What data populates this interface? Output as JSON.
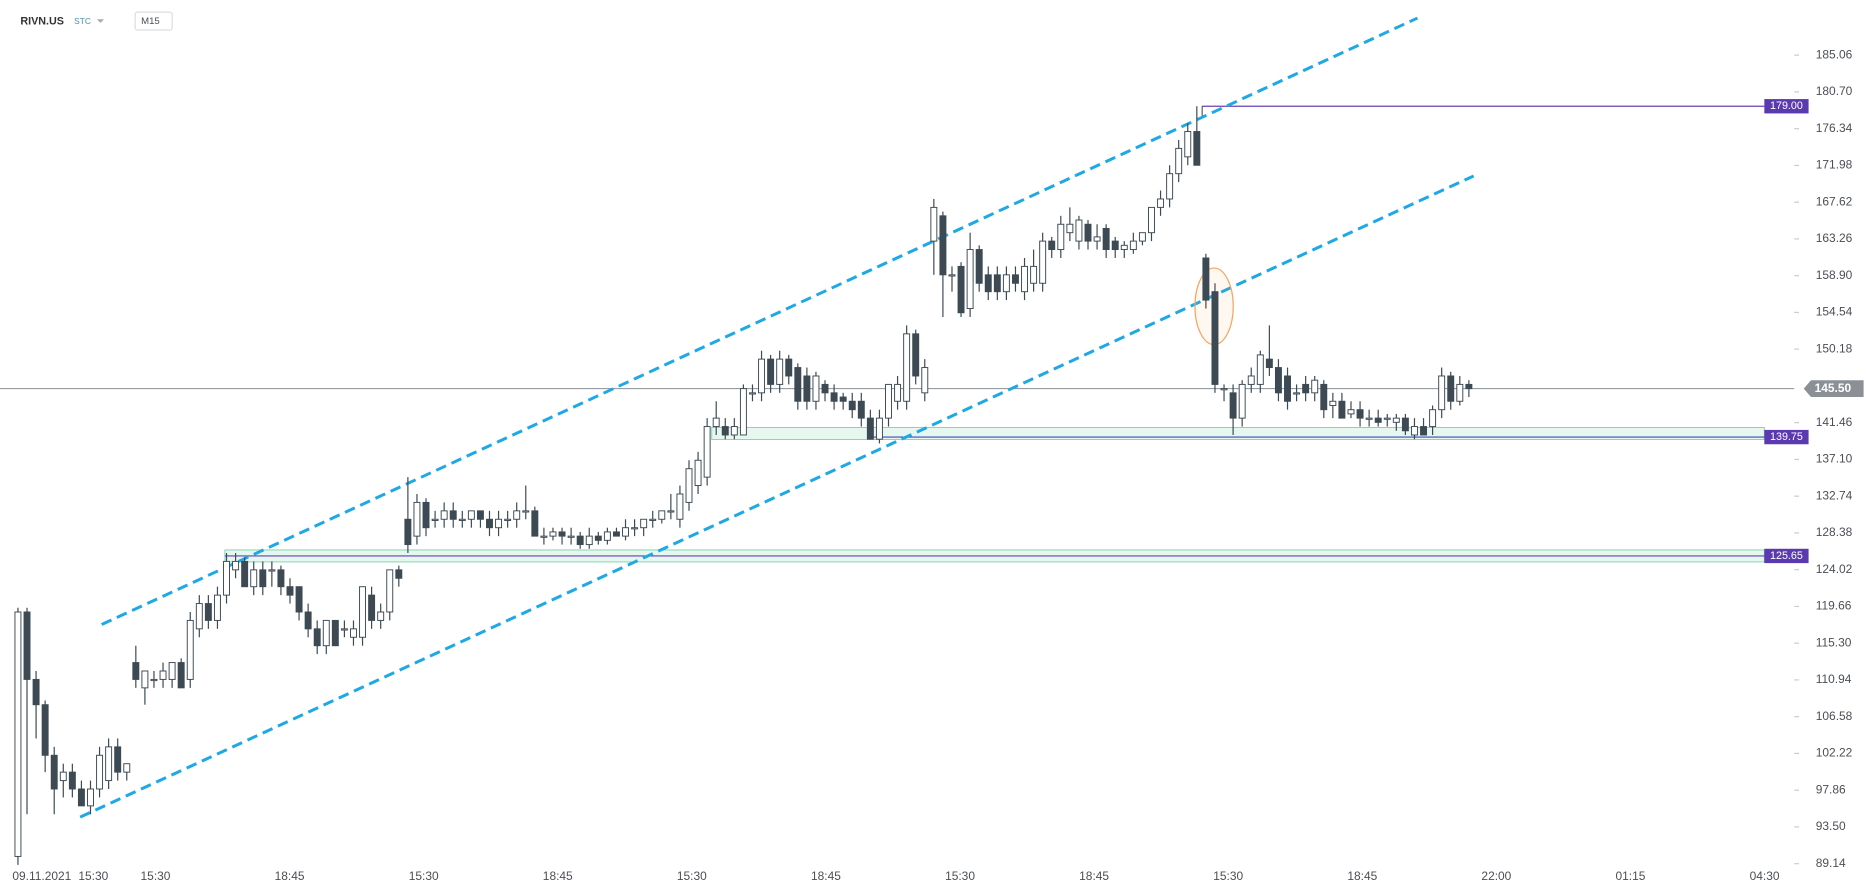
{
  "header": {
    "symbol": "RIVN.US",
    "tag": "STC",
    "interval": "M15"
  },
  "chart_data": {
    "type": "candlestick",
    "ylim": [
      88.28,
      191.59
    ],
    "yticks": [
      185.06,
      {
        "value": 180.7,
        "label": "180.70"
      },
      176.34,
      171.98,
      167.62,
      163.26,
      {
        "value": 158.9,
        "label": "158.90"
      },
      154.54,
      150.18,
      141.46,
      {
        "value": 137.1,
        "label": "137.10"
      },
      132.74,
      128.38,
      124.02,
      119.66,
      {
        "value": 115.3,
        "label": "115.30"
      },
      110.94,
      106.58,
      102.22,
      97.86,
      {
        "value": 93.5,
        "label": "93.50"
      },
      89.14
    ],
    "xlabels": [
      "09.11.2021",
      "15:30",
      "15:30",
      "18:45",
      "15:30",
      "18:45",
      "15:30",
      "18:45",
      "15:30",
      "18:45",
      "15:30",
      "18:45",
      "22:00",
      "01:15",
      "04:30"
    ],
    "current_price": {
      "value": 145.5,
      "label": "145.50"
    },
    "levels": [
      {
        "value": 179,
        "label": "179.00"
      },
      {
        "value": 139.75,
        "label": "139.75"
      },
      {
        "value": 125.65,
        "label": "125.65"
      }
    ],
    "up_color": "#ffffff",
    "down_color": "#3d4a54",
    "ohlc": [
      [
        90,
        119.5,
        89,
        119
      ],
      [
        119,
        119.5,
        95,
        111
      ],
      [
        111,
        112,
        104,
        108
      ],
      [
        108,
        108.5,
        100,
        102
      ],
      [
        102,
        103,
        95,
        98
      ],
      [
        99,
        101,
        97,
        100
      ],
      [
        100,
        101,
        97,
        98
      ],
      [
        98,
        99,
        96,
        96
      ],
      [
        96,
        99,
        95,
        98
      ],
      [
        98,
        103,
        97,
        102
      ],
      [
        99,
        104,
        98,
        103
      ],
      [
        103,
        104,
        99,
        100
      ],
      [
        100,
        101,
        99,
        101
      ],
      [
        113,
        115,
        110,
        111
      ],
      [
        110,
        112,
        108,
        112
      ],
      [
        111,
        112,
        110,
        111
      ],
      [
        111,
        113,
        110,
        112
      ],
      [
        111,
        113,
        110,
        113
      ],
      [
        113,
        113.5,
        110,
        110
      ],
      [
        111,
        119,
        110,
        118
      ],
      [
        117,
        121,
        116,
        120
      ],
      [
        120,
        121,
        117,
        118
      ],
      [
        118,
        122,
        117,
        121
      ],
      [
        121,
        126,
        120,
        125
      ],
      [
        124,
        126,
        123,
        125
      ],
      [
        125,
        125.5,
        122,
        122
      ],
      [
        122,
        125,
        121,
        124
      ],
      [
        124,
        125,
        121,
        122
      ],
      [
        124,
        125,
        122,
        124
      ],
      [
        124,
        124.5,
        121,
        122
      ],
      [
        122,
        123,
        120,
        121
      ],
      [
        122,
        122,
        118,
        119
      ],
      [
        119,
        120,
        116,
        117
      ],
      [
        117,
        118,
        114,
        115
      ],
      [
        115,
        118,
        114,
        118
      ],
      [
        118,
        118,
        115,
        115
      ],
      [
        117,
        118,
        116,
        117
      ],
      [
        116,
        118,
        115,
        117
      ],
      [
        116,
        122,
        115,
        122
      ],
      [
        121,
        122,
        117,
        118
      ],
      [
        118,
        120,
        117,
        119
      ],
      [
        119,
        124,
        118,
        124
      ],
      [
        124,
        124.5,
        122,
        123
      ],
      [
        130,
        135,
        126,
        127
      ],
      [
        128,
        133,
        127,
        132
      ],
      [
        132,
        132.5,
        128,
        129
      ],
      [
        130,
        131,
        129,
        130
      ],
      [
        130,
        132,
        129,
        131
      ],
      [
        131,
        132,
        129,
        130
      ],
      [
        130,
        131,
        129,
        130
      ],
      [
        130,
        131,
        129,
        131
      ],
      [
        131,
        131,
        129,
        130
      ],
      [
        130,
        131,
        128,
        129
      ],
      [
        129,
        131,
        128,
        130
      ],
      [
        130,
        131,
        129,
        130
      ],
      [
        130,
        132,
        129,
        131
      ],
      [
        131,
        134,
        130,
        131
      ],
      [
        131,
        131.5,
        128,
        128
      ],
      [
        128,
        129,
        127,
        128
      ],
      [
        128,
        129,
        127.5,
        128.5
      ],
      [
        128.5,
        129,
        127,
        128
      ],
      [
        128,
        129,
        127,
        128
      ],
      [
        128,
        128.5,
        126.5,
        127
      ],
      [
        127,
        129,
        126.5,
        128
      ],
      [
        128,
        128.5,
        127,
        127.5
      ],
      [
        127.5,
        129,
        127,
        128.5
      ],
      [
        128.5,
        129,
        128,
        128
      ],
      [
        128,
        130,
        127.5,
        129
      ],
      [
        129,
        130,
        128,
        129
      ],
      [
        129,
        130,
        128,
        130
      ],
      [
        130,
        131,
        129,
        130
      ],
      [
        130,
        131,
        129.5,
        131
      ],
      [
        131,
        133,
        130,
        131
      ],
      [
        130,
        134,
        129,
        133
      ],
      [
        132,
        137,
        131,
        136
      ],
      [
        134,
        138,
        133,
        137
      ],
      [
        135,
        142,
        134,
        141
      ],
      [
        141,
        144,
        140,
        142
      ],
      [
        141,
        142,
        139.5,
        140
      ],
      [
        140,
        142,
        139.5,
        141
      ],
      [
        140,
        146,
        140,
        145.5
      ],
      [
        145,
        146,
        144,
        145
      ],
      [
        145,
        150,
        144,
        149
      ],
      [
        149,
        149.5,
        145,
        146
      ],
      [
        146,
        150,
        145,
        149
      ],
      [
        149,
        149.5,
        146,
        147
      ],
      [
        148,
        148.5,
        143,
        144
      ],
      [
        147,
        148,
        143,
        144
      ],
      [
        144,
        147.5,
        143,
        147
      ],
      [
        146,
        146.5,
        144,
        145
      ],
      [
        145,
        146,
        143,
        144
      ],
      [
        144.5,
        145,
        143,
        144
      ],
      [
        144,
        145,
        142,
        143
      ],
      [
        144,
        145,
        141,
        142
      ],
      [
        142,
        143,
        139.5,
        139.5
      ],
      [
        139.5,
        143,
        139,
        142
      ],
      [
        142,
        146,
        141,
        146
      ],
      [
        144,
        147,
        143,
        146
      ],
      [
        144,
        153,
        143,
        152
      ],
      [
        152,
        152.5,
        146,
        147
      ],
      [
        145,
        149,
        144,
        148
      ],
      [
        163,
        168,
        159,
        167
      ],
      [
        166,
        166.5,
        154,
        159
      ],
      [
        159,
        160,
        157,
        159
      ],
      [
        160,
        160.5,
        154,
        154.5
      ],
      [
        155,
        164,
        154,
        162
      ],
      [
        162,
        162.5,
        157,
        158
      ],
      [
        159,
        160,
        156,
        157
      ],
      [
        159,
        160,
        156,
        157
      ],
      [
        157,
        160,
        156,
        159
      ],
      [
        159,
        160,
        157,
        158
      ],
      [
        157,
        161,
        156,
        160
      ],
      [
        158,
        162,
        157,
        160
      ],
      [
        158,
        164,
        157,
        163
      ],
      [
        163,
        163.5,
        161,
        162
      ],
      [
        162,
        166,
        161,
        165
      ],
      [
        164,
        167,
        163,
        165
      ],
      [
        163,
        166,
        162,
        165.5
      ],
      [
        165,
        165.5,
        162,
        163
      ],
      [
        163,
        165,
        162,
        163.5
      ],
      [
        164.5,
        165,
        161,
        162
      ],
      [
        163,
        163.5,
        161,
        162
      ],
      [
        162,
        163,
        161,
        162.5
      ],
      [
        162,
        164,
        161.5,
        163
      ],
      [
        163,
        164,
        162.5,
        164
      ],
      [
        164,
        167,
        163,
        167
      ],
      [
        167,
        169,
        166,
        168
      ],
      [
        168,
        172,
        167,
        171
      ],
      [
        171,
        175,
        170,
        174
      ],
      [
        173,
        177,
        172,
        176
      ],
      [
        176,
        179,
        172,
        172
      ],
      [
        161,
        161.5,
        155,
        156
      ],
      [
        157,
        158,
        145,
        146
      ],
      [
        145.5,
        146,
        144,
        145.5
      ],
      [
        145,
        146,
        140,
        142
      ],
      [
        142,
        146.5,
        141,
        146
      ],
      [
        146,
        148,
        145,
        147
      ],
      [
        146,
        150,
        145,
        149.5
      ],
      [
        149,
        153,
        147,
        148
      ],
      [
        148,
        149,
        144,
        145
      ],
      [
        147,
        148,
        143,
        144
      ],
      [
        145,
        146,
        144,
        145
      ],
      [
        146,
        147,
        144,
        145
      ],
      [
        145,
        147,
        144,
        146.5
      ],
      [
        146,
        146.5,
        142,
        143
      ],
      [
        143.5,
        145,
        142,
        144
      ],
      [
        144,
        145,
        142,
        142
      ],
      [
        142.5,
        144,
        142,
        143
      ],
      [
        143,
        144,
        141,
        142
      ],
      [
        142,
        143,
        141,
        142
      ],
      [
        142,
        143,
        141,
        141.5
      ],
      [
        142,
        142.5,
        141,
        142
      ],
      [
        141.5,
        142.5,
        140.5,
        142
      ],
      [
        142,
        142.5,
        140,
        140.5
      ],
      [
        140,
        142,
        139.5,
        141
      ],
      [
        141,
        142,
        140,
        140
      ],
      [
        141,
        143.5,
        140,
        143
      ],
      [
        143,
        148,
        142,
        147
      ],
      [
        147,
        147.5,
        143,
        144
      ],
      [
        144,
        147,
        143.5,
        146
      ],
      [
        146,
        146.5,
        144.5,
        145.5
      ]
    ]
  }
}
